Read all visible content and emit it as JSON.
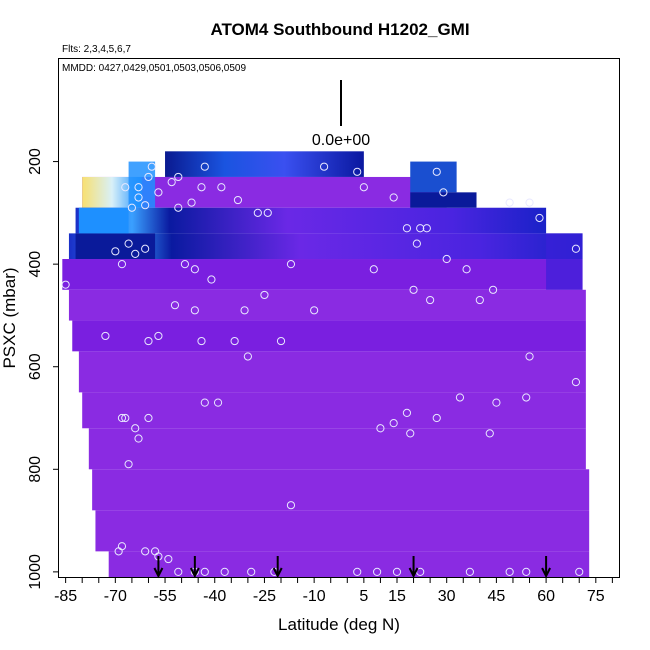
{
  "chart_data": {
    "type": "heatmap",
    "title": "ATOM4 Southbound H1202_GMI",
    "flights_note": "Flts: 2,3,4,5,6,7",
    "dates_note": "MMDD: 0427,0429,0501,0503,0506,0509",
    "scale_label": "0.0e+00",
    "xlabel": "Latitude (deg N)",
    "ylabel": "PSXC (mbar)",
    "xlim": [
      -87,
      82
    ],
    "ylim": [
      1010,
      0
    ],
    "x_ticks": [
      -85,
      -70,
      -55,
      -40,
      -25,
      -10,
      5,
      15,
      30,
      45,
      60,
      75
    ],
    "x_tick_labels": [
      "-85",
      "-70",
      "-55",
      "-40",
      "-25",
      "-10",
      "5",
      "15",
      "30",
      "45",
      "60",
      "75"
    ],
    "y_ticks": [
      200,
      400,
      600,
      800,
      1000
    ],
    "y_tick_labels": [
      "200",
      "400",
      "600",
      "800",
      "1000"
    ],
    "colors": {
      "fill_main": "#8a2be2",
      "fill_dark": "#7a1fe0",
      "blue_dark": "#0a1a9a",
      "blue_mid": "#1a4fd0",
      "blue_light": "#1e90ff",
      "yellow": "#f8e070",
      "axis": "#000000"
    },
    "arrow_latitudes": [
      -57,
      -46,
      -21,
      20,
      60
    ],
    "sample_points": [
      [
        -85,
        440
      ],
      [
        -73,
        540
      ],
      [
        -70,
        375
      ],
      [
        -68,
        400
      ],
      [
        -66,
        360
      ],
      [
        -64,
        380
      ],
      [
        -61,
        370
      ],
      [
        -65,
        290
      ],
      [
        -63,
        270
      ],
      [
        -67,
        250
      ],
      [
        -63,
        250
      ],
      [
        -60,
        230
      ],
      [
        -57,
        260
      ],
      [
        -53,
        240
      ],
      [
        -51,
        230
      ],
      [
        -59,
        210
      ],
      [
        -61,
        285
      ],
      [
        -47,
        280
      ],
      [
        -44,
        250
      ],
      [
        -38,
        250
      ],
      [
        -33,
        275
      ],
      [
        -27,
        300
      ],
      [
        -24,
        300
      ],
      [
        -43,
        210
      ],
      [
        -51,
        290
      ],
      [
        -49,
        400
      ],
      [
        -46,
        410
      ],
      [
        -52,
        480
      ],
      [
        -57,
        540
      ],
      [
        -60,
        550
      ],
      [
        -46,
        490
      ],
      [
        -41,
        430
      ],
      [
        -31,
        490
      ],
      [
        -25,
        460
      ],
      [
        -17,
        400
      ],
      [
        -10,
        490
      ],
      [
        -7,
        210
      ],
      [
        3,
        220
      ],
      [
        5,
        250
      ],
      [
        8,
        410
      ],
      [
        14,
        270
      ],
      [
        18,
        330
      ],
      [
        22,
        330
      ],
      [
        24,
        330
      ],
      [
        21,
        360
      ],
      [
        20,
        450
      ],
      [
        25,
        470
      ],
      [
        27,
        220
      ],
      [
        29,
        260
      ],
      [
        30,
        390
      ],
      [
        36,
        410
      ],
      [
        40,
        470
      ],
      [
        44,
        450
      ],
      [
        49,
        280
      ],
      [
        55,
        280
      ],
      [
        58,
        310
      ],
      [
        69,
        370
      ],
      [
        -68,
        700
      ],
      [
        -67,
        700
      ],
      [
        -64,
        720
      ],
      [
        -63,
        740
      ],
      [
        -60,
        700
      ],
      [
        -66,
        790
      ],
      [
        -44,
        550
      ],
      [
        -34,
        550
      ],
      [
        -30,
        580
      ],
      [
        -20,
        550
      ],
      [
        -43,
        670
      ],
      [
        -39,
        670
      ],
      [
        -17,
        870
      ],
      [
        -68,
        950
      ],
      [
        -69,
        960
      ],
      [
        -61,
        960
      ],
      [
        -58,
        960
      ],
      [
        -57,
        970
      ],
      [
        -54,
        975
      ],
      [
        -51,
        1000
      ],
      [
        -46,
        1000
      ],
      [
        -43,
        1000
      ],
      [
        -37,
        1000
      ],
      [
        -29,
        1000
      ],
      [
        -22,
        1000
      ],
      [
        10,
        720
      ],
      [
        14,
        710
      ],
      [
        18,
        690
      ],
      [
        19,
        730
      ],
      [
        27,
        700
      ],
      [
        34,
        660
      ],
      [
        43,
        730
      ],
      [
        45,
        670
      ],
      [
        54,
        660
      ],
      [
        55,
        580
      ],
      [
        69,
        630
      ],
      [
        3,
        1000
      ],
      [
        9,
        1000
      ],
      [
        15,
        1000
      ],
      [
        22,
        1000
      ],
      [
        37,
        1000
      ],
      [
        49,
        1000
      ],
      [
        54,
        1000
      ],
      [
        70,
        1000
      ]
    ]
  }
}
